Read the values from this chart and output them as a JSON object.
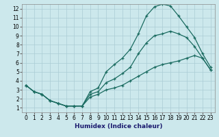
{
  "xlabel": "Humidex (Indice chaleur)",
  "bg_color": "#cce8ec",
  "grid_color": "#aaccd4",
  "line_color": "#1a6b60",
  "xlim": [
    -0.5,
    23.5
  ],
  "ylim": [
    0.5,
    12.5
  ],
  "xticks": [
    0,
    1,
    2,
    3,
    4,
    5,
    6,
    7,
    8,
    9,
    10,
    11,
    12,
    13,
    14,
    15,
    16,
    17,
    18,
    19,
    20,
    21,
    22,
    23
  ],
  "yticks": [
    1,
    2,
    3,
    4,
    5,
    6,
    7,
    8,
    9,
    10,
    11,
    12
  ],
  "line1_x": [
    0,
    1,
    2,
    3,
    4,
    5,
    6,
    7,
    8,
    9,
    10,
    11,
    12,
    13,
    14,
    15,
    16,
    17,
    18,
    19,
    20,
    21,
    22,
    23
  ],
  "line1_y": [
    3.5,
    2.8,
    2.5,
    1.8,
    1.5,
    1.2,
    1.2,
    1.2,
    2.8,
    3.2,
    5.0,
    5.8,
    6.5,
    7.5,
    9.2,
    11.2,
    12.2,
    12.5,
    12.3,
    11.2,
    10.0,
    8.8,
    7.0,
    5.5
  ],
  "line2_x": [
    0,
    1,
    2,
    3,
    4,
    5,
    6,
    7,
    8,
    9,
    10,
    11,
    12,
    13,
    14,
    15,
    16,
    17,
    18,
    19,
    20,
    21,
    22,
    23
  ],
  "line2_y": [
    3.5,
    2.8,
    2.5,
    1.8,
    1.5,
    1.2,
    1.2,
    1.2,
    2.5,
    2.8,
    3.8,
    4.2,
    4.8,
    5.5,
    7.0,
    8.2,
    9.0,
    9.2,
    9.5,
    9.2,
    8.8,
    7.8,
    6.5,
    5.2
  ],
  "line3_x": [
    0,
    1,
    2,
    3,
    4,
    5,
    6,
    7,
    8,
    9,
    10,
    11,
    12,
    13,
    14,
    15,
    16,
    17,
    18,
    19,
    20,
    21,
    22,
    23
  ],
  "line3_y": [
    3.5,
    2.8,
    2.5,
    1.8,
    1.5,
    1.2,
    1.2,
    1.2,
    2.2,
    2.5,
    3.0,
    3.2,
    3.5,
    4.0,
    4.5,
    5.0,
    5.5,
    5.8,
    6.0,
    6.2,
    6.5,
    6.8,
    6.5,
    5.2
  ]
}
